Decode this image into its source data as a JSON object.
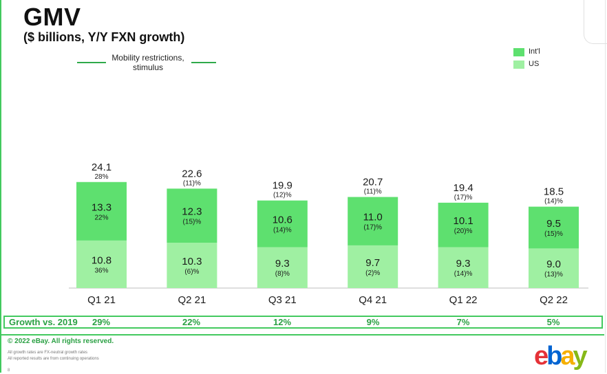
{
  "title": "GMV",
  "subtitle": "($ billions, Y/Y FXN growth)",
  "annotation": "Mobility restrictions, stimulus",
  "legend": [
    {
      "label": "Int'l",
      "color": "#5ee06f"
    },
    {
      "label": "US",
      "color": "#9ff0a2"
    }
  ],
  "growth_label": "Growth vs. 2019",
  "growth_values": [
    "29%",
    "22%",
    "12%",
    "9%",
    "7%",
    "5%"
  ],
  "footer": {
    "copyright": "© 2022 eBay. All rights reserved.",
    "note1": "All growth rates are FX-neutral growth rates",
    "note2": "All reported results are from continuing operations",
    "page_mark": "8"
  },
  "logo": {
    "text": "ebay",
    "colors": [
      "#e53238",
      "#0064d2",
      "#f5af02",
      "#86b817"
    ]
  },
  "chart_data": {
    "type": "bar",
    "stacked": true,
    "categories": [
      "Q1 21",
      "Q2 21",
      "Q3 21",
      "Q4 21",
      "Q1 22",
      "Q2 22"
    ],
    "totals": [
      "24.1",
      "22.6",
      "19.9",
      "20.7",
      "19.4",
      "18.5"
    ],
    "total_growth": [
      "28%",
      "(11)%",
      "(12)%",
      "(11)%",
      "(17)%",
      "(14)%"
    ],
    "series": [
      {
        "name": "US",
        "color": "#9ff0a2",
        "values": [
          10.8,
          10.3,
          9.3,
          9.7,
          9.3,
          9.0
        ],
        "labels": [
          "10.8",
          "10.3",
          "9.3",
          "9.7",
          "9.3",
          "9.0"
        ],
        "growth": [
          "36%",
          "(6)%",
          "(8)%",
          "(2)%",
          "(14)%",
          "(13)%"
        ]
      },
      {
        "name": "Int'l",
        "color": "#5ee06f",
        "values": [
          13.3,
          12.3,
          10.6,
          11.0,
          10.1,
          9.5
        ],
        "labels": [
          "13.3",
          "12.3",
          "10.6",
          "11.0",
          "10.1",
          "9.5"
        ],
        "growth": [
          "22%",
          "(15)%",
          "(14)%",
          "(17)%",
          "(20)%",
          "(15)%"
        ]
      }
    ]
  }
}
